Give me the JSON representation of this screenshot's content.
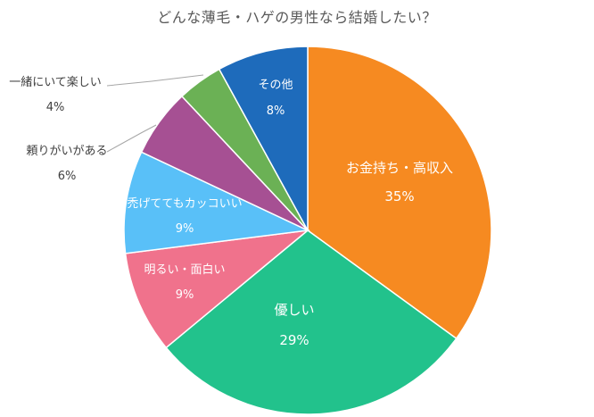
{
  "chart_data": {
    "type": "pie",
    "title": "どんな薄毛・ハゲの男性なら結婚したい？",
    "slices": [
      {
        "label": "お金持ち・高収入",
        "value": 35,
        "display": "35%",
        "color": "#F68A21"
      },
      {
        "label": "優しい",
        "value": 29,
        "display": "29%",
        "color": "#22C28C"
      },
      {
        "label": "明るい・面白い",
        "value": 9,
        "display": "9%",
        "color": "#F0728C"
      },
      {
        "label": "禿げててもカッコいい",
        "value": 9,
        "display": "9%",
        "color": "#59C0F8"
      },
      {
        "label": "頼りがいがある",
        "value": 6,
        "display": "6%",
        "color": "#A65093"
      },
      {
        "label": "一緒にいて楽しい",
        "value": 4,
        "display": "4%",
        "color": "#6BB155"
      },
      {
        "label": "その他",
        "value": 8,
        "display": "8%",
        "color": "#1E6BBB"
      }
    ],
    "start_angle_deg": 0,
    "direction": "clockwise",
    "legend": "none",
    "labels": "category-and-percent"
  }
}
